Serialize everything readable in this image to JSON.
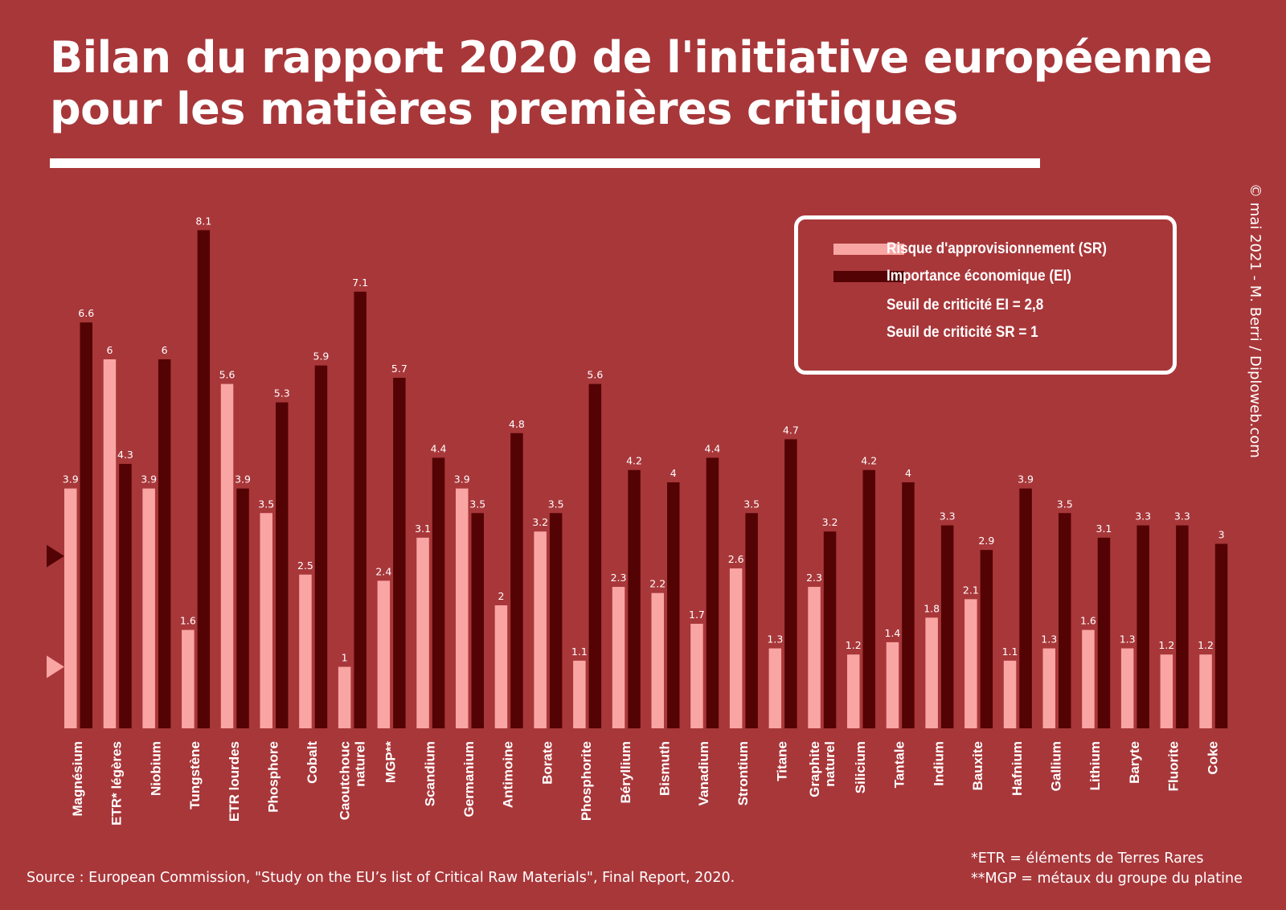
{
  "title": "Bilan du rapport 2020 de l'initiative européenne pour les matières premières critiques",
  "credit": "© mai 2021 - M. Berri / Diploweb.com",
  "source": "Source : European Commission, \"Study on the EU’s list of Critical Raw Materials\", Final Report, 2020.",
  "notes": [
    "*ETR = éléments de Terres Rares",
    "**MGP = métaux du groupe du platine"
  ],
  "colors": {
    "background": "#a8373a",
    "sr": "#f9a5a4",
    "ei": "#540304",
    "text": "#ffffff"
  },
  "legend": {
    "sr_label": "Risque d'approvisionnement (SR)",
    "ei_label": "Importance économique (EI)",
    "ei_threshold_label": "Seuil de criticité EI = 2,8",
    "sr_threshold_label": "Seuil de criticité SR = 1",
    "sr_icon": "light-bar",
    "ei_icon": "dark-bar",
    "ei_threshold_icon": "dark-triangle-marker",
    "sr_threshold_icon": "light-triangle-marker"
  },
  "chart_data": {
    "type": "bar",
    "title": "Bilan du rapport 2020 de l'initiative européenne pour les matières premières critiques",
    "xlabel": "",
    "ylabel": "",
    "ylim": [
      0,
      8.2
    ],
    "grid": false,
    "legend_position": "top-right",
    "categories": [
      "Magnésium",
      "ETR* légères",
      "Niobium",
      "Tungstène",
      "ETR lourdes",
      "Phosphore",
      "Cobalt",
      "Caoutchouc naturel",
      "MGP**",
      "Scandium",
      "Germanium",
      "Antimoine",
      "Borate",
      "Phosphorite",
      "Béryllium",
      "Bismuth",
      "Vanadium",
      "Strontium",
      "Titane",
      "Graphite naturel",
      "Silicium",
      "Tantale",
      "Indium",
      "Bauxite",
      "Hafnium",
      "Gallium",
      "Lithium",
      "Baryte",
      "Fluorite",
      "Coke"
    ],
    "series": [
      {
        "name": "Risque d'approvisionnement (SR)",
        "color": "#f9a5a4",
        "values": [
          3.9,
          6,
          3.9,
          1.6,
          5.6,
          3.5,
          2.5,
          1,
          2.4,
          3.1,
          3.9,
          2,
          3.2,
          1.1,
          2.3,
          2.2,
          1.7,
          2.6,
          1.3,
          2.3,
          1.2,
          1.4,
          1.8,
          2.1,
          1.1,
          1.3,
          1.6,
          1.3,
          1.2,
          1.2
        ]
      },
      {
        "name": "Importance économique (EI)",
        "color": "#540304",
        "values": [
          6.6,
          4.3,
          6,
          8.1,
          3.9,
          5.3,
          5.9,
          7.1,
          5.7,
          4.4,
          3.5,
          4.8,
          3.5,
          5.6,
          4.2,
          4,
          4.4,
          3.5,
          4.7,
          3.2,
          4.2,
          4,
          3.3,
          2.9,
          3.9,
          3.5,
          3.1,
          3.3,
          3.3,
          3
        ]
      }
    ],
    "thresholds": [
      {
        "series": "Importance économique (EI)",
        "value": 2.8
      },
      {
        "series": "Risque d'approvisionnement (SR)",
        "value": 1
      }
    ]
  }
}
